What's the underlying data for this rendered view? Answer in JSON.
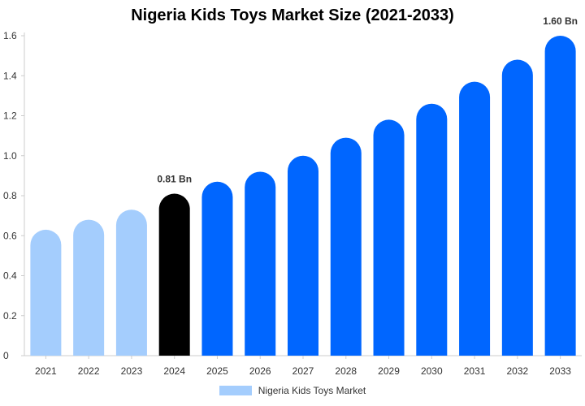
{
  "chart_data": {
    "type": "bar",
    "title": "Nigeria Kids Toys Market Size (2021-2033)",
    "categories": [
      "2021",
      "2022",
      "2023",
      "2024",
      "2025",
      "2026",
      "2027",
      "2028",
      "2029",
      "2030",
      "2031",
      "2032",
      "2033"
    ],
    "series": [
      {
        "name": "Nigeria Kids Toys Market",
        "values": [
          0.63,
          0.68,
          0.73,
          0.81,
          0.87,
          0.92,
          1.0,
          1.09,
          1.18,
          1.26,
          1.37,
          1.48,
          1.6
        ]
      }
    ],
    "data_labels": [
      {
        "category": "2024",
        "text": "0.81 Bn"
      },
      {
        "category": "2033",
        "text": "1.60 Bn"
      }
    ],
    "y_ticks": [
      "0",
      "0.2",
      "0.4",
      "0.6",
      "0.8",
      "1.0",
      "1.2",
      "1.4",
      "1.6"
    ],
    "ylim": [
      0,
      1.6
    ],
    "xlabel": "",
    "ylabel": "",
    "grid": false,
    "legend_position": "bottom",
    "colors": {
      "historical": "#a4cdfd",
      "current": "#000000",
      "forecast": "#0066ff",
      "legend": "#a4cdfd",
      "axis": "#cccccc"
    },
    "bar_color_groups": [
      "historical",
      "historical",
      "historical",
      "current",
      "forecast",
      "forecast",
      "forecast",
      "forecast",
      "forecast",
      "forecast",
      "forecast",
      "forecast",
      "forecast"
    ]
  }
}
